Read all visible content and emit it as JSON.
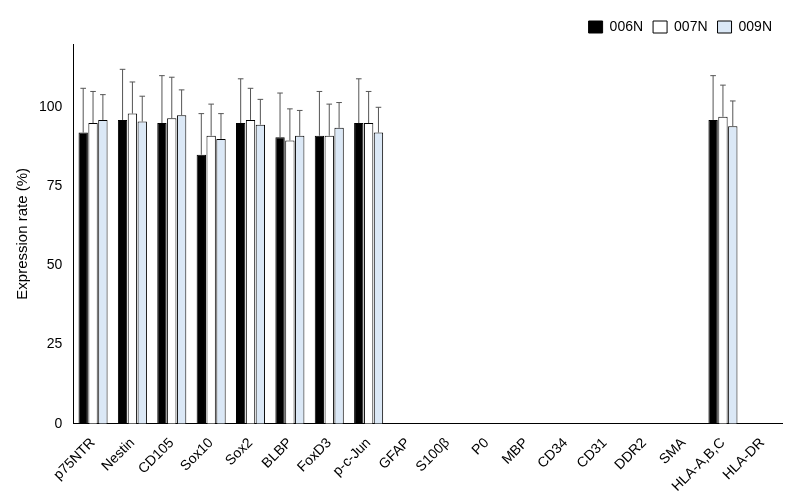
{
  "chart_data": {
    "type": "bar",
    "y_label": "Expression rate (%)",
    "categories": [
      "p75NTR",
      "Nestin",
      "CD105",
      "Sox10",
      "Sox2",
      "BLBP",
      "FoxD3",
      "p-c-Jun",
      "GFAP",
      "S100β",
      "P0",
      "MBP",
      "CD34",
      "CD31",
      "DDR2",
      "SMA",
      "HLA-A,B,C",
      "HLA-DR"
    ],
    "series": [
      {
        "name": "006N",
        "color": "#000000",
        "values": [
          92,
          96,
          95,
          85,
          95,
          90.5,
          91,
          95,
          0,
          0,
          0,
          0,
          0,
          0,
          0,
          0,
          96,
          0
        ],
        "errors": [
          14,
          16,
          15,
          13,
          14,
          14,
          14,
          14,
          0,
          0,
          0,
          0,
          0,
          0,
          0,
          0,
          14,
          0
        ]
      },
      {
        "name": "007N",
        "color": "#ffffff",
        "values": [
          95,
          98,
          96.5,
          91,
          96,
          89.5,
          91,
          95,
          0,
          0,
          0,
          0,
          0,
          0,
          0,
          0,
          97,
          0
        ],
        "errors": [
          10,
          10,
          13,
          10,
          10,
          10,
          10,
          10,
          0,
          0,
          0,
          0,
          0,
          0,
          0,
          0,
          10,
          0
        ]
      },
      {
        "name": "009N",
        "color": "#dbe8f6",
        "values": [
          96,
          95.5,
          97.5,
          90,
          94.5,
          91,
          93.5,
          92,
          0,
          0,
          0,
          0,
          0,
          0,
          0,
          0,
          94,
          0
        ],
        "errors": [
          8,
          8,
          8,
          8,
          8,
          8,
          8,
          8,
          0,
          0,
          0,
          0,
          0,
          0,
          0,
          0,
          8,
          0
        ]
      }
    ],
    "ylim": [
      0,
      120
    ],
    "yticks": [
      0,
      25,
      50,
      75,
      100
    ],
    "grid": false,
    "legend": "upper right"
  }
}
